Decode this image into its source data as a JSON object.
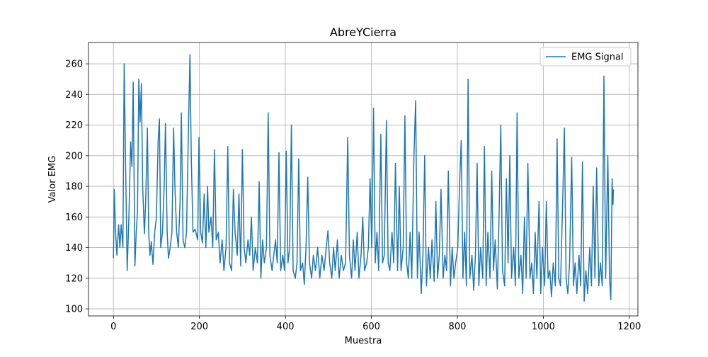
{
  "chart_data": {
    "type": "line",
    "title": "AbreYCierra",
    "x_label": "Muestra",
    "y_label": "Valor EMG",
    "x": [
      0,
      2,
      5,
      8,
      12,
      15,
      18,
      22,
      25,
      28,
      32,
      36,
      40,
      43,
      46,
      50,
      53,
      56,
      59,
      62,
      65,
      68,
      72,
      75,
      79,
      82,
      85,
      88,
      92,
      96,
      100,
      104,
      107,
      110,
      114,
      118,
      121,
      125,
      128,
      132,
      136,
      140,
      143,
      147,
      151,
      155,
      158,
      162,
      166,
      170,
      174,
      178,
      181,
      185,
      190,
      196,
      199,
      203,
      207,
      211,
      215,
      219,
      222,
      227,
      231,
      235,
      239,
      244,
      248,
      253,
      257,
      262,
      266,
      270,
      275,
      279,
      283,
      288,
      292,
      296,
      300,
      304,
      308,
      313,
      317,
      321,
      325,
      330,
      335,
      339,
      343,
      347,
      351,
      356,
      360,
      364,
      369,
      373,
      377,
      381,
      385,
      389,
      394,
      398,
      402,
      406,
      410,
      414,
      418,
      423,
      427,
      431,
      435,
      440,
      444,
      448,
      452,
      456,
      461,
      465,
      470,
      475,
      480,
      485,
      490,
      495,
      499,
      503,
      508,
      512,
      516,
      521,
      525,
      530,
      535,
      540,
      545,
      549,
      554,
      558,
      562,
      567,
      571,
      576,
      580,
      584,
      589,
      593,
      597,
      601,
      605,
      609,
      613,
      617,
      622,
      626,
      630,
      635,
      639,
      643,
      648,
      652,
      656,
      661,
      665,
      669,
      674,
      678,
      682,
      686,
      690,
      694,
      699,
      703,
      707,
      711,
      716,
      720,
      724,
      728,
      733,
      737,
      741,
      746,
      750,
      754,
      758,
      762,
      767,
      771,
      775,
      779,
      784,
      788,
      792,
      796,
      801,
      805,
      809,
      813,
      817,
      821,
      825,
      829,
      834,
      838,
      842,
      846,
      850,
      854,
      859,
      863,
      867,
      871,
      876,
      880,
      884,
      888,
      893,
      897,
      901,
      905,
      910,
      914,
      918,
      922,
      926,
      931,
      935,
      939,
      943,
      948,
      952,
      956,
      960,
      964,
      969,
      973,
      977,
      981,
      985,
      990,
      994,
      998,
      1003,
      1007,
      1011,
      1015,
      1019,
      1023,
      1028,
      1032,
      1036,
      1040,
      1045,
      1049,
      1053,
      1057,
      1061,
      1066,
      1070,
      1074,
      1078,
      1083,
      1087,
      1091,
      1095,
      1099,
      1103,
      1108,
      1112,
      1116,
      1120,
      1124,
      1129,
      1133,
      1137,
      1141,
      1145,
      1150,
      1154,
      1157,
      1160,
      1162,
      1163
    ],
    "series": [
      {
        "name": "EMG Signal",
        "color": "#1f77b4",
        "values": [
          133,
          178,
          150,
          135,
          155,
          140,
          155,
          140,
          260,
          200,
          125,
          160,
          209,
          193,
          248,
          128,
          150,
          163,
          250,
          222,
          247,
          180,
          149,
          170,
          218,
          150,
          135,
          144,
          129,
          150,
          160,
          210,
          224,
          140,
          150,
          180,
          221,
          150,
          133,
          140,
          150,
          218,
          180,
          150,
          140,
          170,
          228,
          145,
          140,
          150,
          210,
          266,
          200,
          150,
          152,
          145,
          212,
          150,
          143,
          175,
          140,
          180,
          150,
          160,
          140,
          204,
          145,
          150,
          130,
          145,
          125,
          140,
          206,
          130,
          125,
          178,
          150,
          135,
          175,
          128,
          204,
          140,
          130,
          145,
          135,
          160,
          125,
          140,
          130,
          183,
          120,
          145,
          130,
          140,
          228,
          135,
          125,
          135,
          145,
          130,
          202,
          125,
          135,
          125,
          203,
          130,
          140,
          220,
          125,
          120,
          130,
          198,
          125,
          130,
          116,
          140,
          186,
          130,
          120,
          135,
          125,
          140,
          120,
          135,
          125,
          140,
          151,
          130,
          120,
          140,
          125,
          145,
          120,
          135,
          125,
          130,
          212,
          135,
          120,
          145,
          125,
          150,
          120,
          135,
          160,
          125,
          130,
          140,
          185,
          140,
          231,
          130,
          150,
          125,
          214,
          130,
          135,
          223,
          130,
          125,
          150,
          130,
          195,
          125,
          180,
          125,
          140,
          226,
          130,
          120,
          150,
          120,
          200,
          236,
          120,
          150,
          110,
          135,
          200,
          115,
          140,
          120,
          145,
          118,
          170,
          120,
          135,
          178,
          120,
          135,
          125,
          190,
          115,
          140,
          120,
          130,
          140,
          180,
          210,
          120,
          150,
          115,
          250,
          120,
          135,
          112,
          135,
          195,
          115,
          140,
          120,
          206,
          115,
          150,
          120,
          190,
          125,
          145,
          113,
          160,
          220,
          125,
          115,
          185,
          130,
          200,
          120,
          140,
          115,
          228,
          120,
          135,
          110,
          160,
          120,
          195,
          120,
          130,
          110,
          150,
          120,
          170,
          110,
          140,
          115,
          170,
          120,
          125,
          108,
          130,
          115,
          211,
          120,
          115,
          170,
          218,
          120,
          110,
          130,
          199,
          115,
          130,
          110,
          135,
          115,
          196,
          105,
          125,
          110,
          140,
          115,
          180,
          120,
          192,
          115,
          130,
          115,
          252,
          120,
          200,
          120,
          106,
          185,
          168,
          178
        ]
      }
    ],
    "xlim": [
      -58,
      1220
    ],
    "ylim": [
      95.4,
      273.9
    ],
    "xticks": [
      0,
      200,
      400,
      600,
      800,
      1000,
      1200
    ],
    "yticks": [
      100,
      120,
      140,
      160,
      180,
      200,
      220,
      240,
      260
    ],
    "grid": true,
    "legend": "upper right"
  }
}
